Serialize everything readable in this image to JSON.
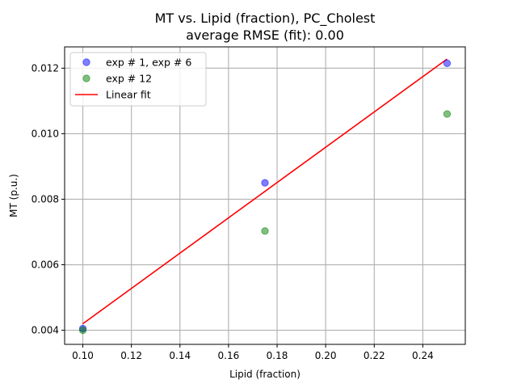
{
  "chart_data": {
    "type": "scatter",
    "title": "MT vs. Lipid (fraction), PC_Cholest",
    "subtitle": "average RMSE (fit): 0.00",
    "xlabel": "Lipid (fraction)",
    "ylabel": "MT (p.u.)",
    "xlim": [
      0.0925,
      0.2575
    ],
    "ylim": [
      0.00357,
      0.01265
    ],
    "xticks": [
      0.1,
      0.12,
      0.14,
      0.16,
      0.18,
      0.2,
      0.22,
      0.24
    ],
    "xtick_labels": [
      "0.10",
      "0.12",
      "0.14",
      "0.16",
      "0.18",
      "0.20",
      "0.22",
      "0.24"
    ],
    "yticks": [
      0.004,
      0.006,
      0.008,
      0.01,
      0.012
    ],
    "ytick_labels": [
      "0.004",
      "0.006",
      "0.008",
      "0.010",
      "0.012"
    ],
    "grid": true,
    "legend_position": "top-left",
    "series": [
      {
        "name": "exp # 1, exp # 6",
        "kind": "scatter",
        "color": "#0000ff",
        "x": [
          0.1,
          0.175,
          0.25
        ],
        "y": [
          0.00405,
          0.0085,
          0.01215
        ]
      },
      {
        "name": "exp # 12",
        "kind": "scatter",
        "color": "#008000",
        "x": [
          0.1,
          0.175,
          0.25
        ],
        "y": [
          0.004,
          0.00703,
          0.0106
        ]
      },
      {
        "name": "Linear fit",
        "kind": "line",
        "color": "#ff0000",
        "x": [
          0.1,
          0.25
        ],
        "y": [
          0.0042,
          0.01228
        ]
      }
    ]
  }
}
